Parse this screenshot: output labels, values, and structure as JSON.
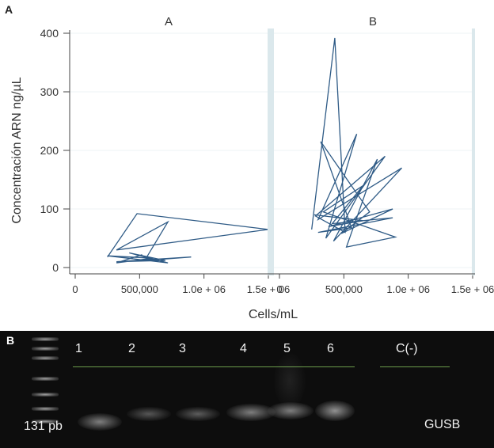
{
  "figure": {
    "panel_a_letter": "A",
    "panel_b_letter": "B"
  },
  "chart_data": [
    {
      "type": "line",
      "facet": "A",
      "ylabel": "Concentración ARN ng/µL",
      "xlabel": "Cells/mL",
      "ylim": [
        0,
        400
      ],
      "xlim": [
        0,
        1500000
      ],
      "yticks": [
        "0",
        "100",
        "200",
        "300",
        "400"
      ],
      "xticks": [
        "0",
        "500,000",
        "1.0e + 06",
        "1.5e + 06"
      ],
      "series": [
        {
          "x": [
            250000,
            480000,
            1500000,
            320000,
            720000,
            540000,
            900000,
            320000,
            700000,
            420000,
            720000,
            250000,
            600000,
            320000,
            520000
          ],
          "y": [
            18,
            92,
            65,
            30,
            78,
            12,
            18,
            10,
            12,
            25,
            8,
            20,
            16,
            8,
            22
          ]
        }
      ]
    },
    {
      "type": "line",
      "facet": "B",
      "ylim": [
        0,
        400
      ],
      "xlim": [
        0,
        1500000
      ],
      "xticks": [
        "0",
        "500,000",
        "1.0e + 06",
        "1.5e + 06"
      ],
      "series": [
        {
          "x": [
            250000,
            430000,
            510000,
            280000,
            820000,
            360000,
            600000,
            300000,
            950000,
            420000,
            760000,
            520000,
            900000,
            340000,
            650000,
            410000,
            880000,
            300000,
            560000,
            320000,
            700000,
            480000,
            880000,
            380000,
            650000,
            270000
          ],
          "y": [
            65,
            392,
            60,
            88,
            190,
            50,
            228,
            82,
            170,
            45,
            185,
            35,
            52,
            95,
            140,
            75,
            85,
            60,
            68,
            215,
            95,
            58,
            100,
            70,
            80,
            90
          ]
        }
      ]
    }
  ],
  "gel": {
    "lanes": [
      "1",
      "2",
      "3",
      "4",
      "5",
      "6",
      "C(-)"
    ],
    "size_label": "131 pb",
    "gene_label": "GUSB",
    "band_intensities": [
      0.8,
      0.5,
      0.5,
      0.75,
      0.8,
      0.9,
      0
    ]
  }
}
